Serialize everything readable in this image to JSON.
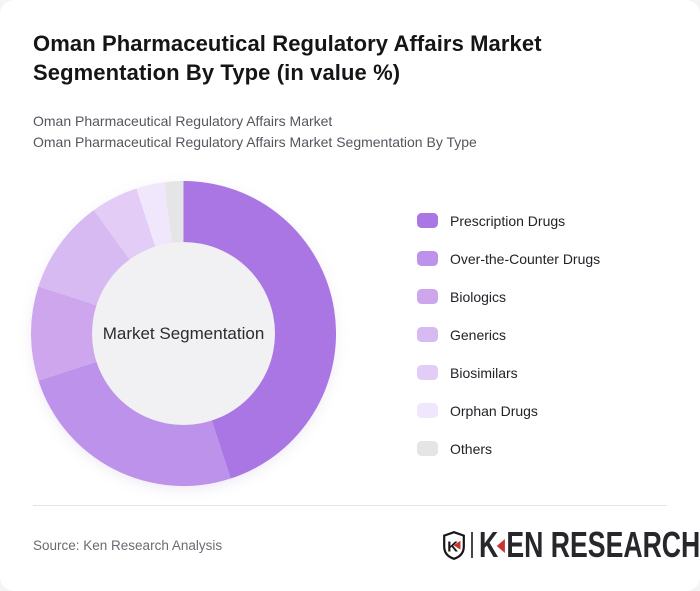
{
  "page": {
    "background_color": "#f4f4f6",
    "card_background": "#ffffff"
  },
  "header": {
    "title": "Oman Pharmaceutical Regulatory Affairs Market Segmentation By Type (in value %)",
    "subtitle_line1": "Oman Pharmaceutical Regulatory Affairs Market",
    "subtitle_line2": "Oman Pharmaceutical Regulatory Affairs Market Segmentation By Type"
  },
  "chart_data": {
    "type": "pie",
    "subtype": "donut",
    "center_label": "Market Segmentation",
    "categories": [
      "Prescription Drugs",
      "Over-the-Counter Drugs",
      "Biologics",
      "Generics",
      "Biosimilars",
      "Orphan Drugs",
      "Others"
    ],
    "values": [
      45,
      25,
      10,
      10,
      5,
      3,
      2
    ],
    "unit": "% of value (estimated from arc angles; no numeric labels shown)",
    "colors": [
      "#aa76e3",
      "#bd92ea",
      "#cda6ee",
      "#d8baf3",
      "#e3cdf7",
      "#f0e7fc",
      "#e5e4e7"
    ],
    "hole_color": "#f1f0f2",
    "start_angle_deg": 0,
    "direction": "clockwise",
    "inner_radius_ratio": 0.6,
    "legend_position": "right",
    "grid": false
  },
  "footer": {
    "source": "Source: Ken Research Analysis",
    "logo": {
      "emblem_letter": "K",
      "brand_part1": "K",
      "brand_part2": "EN RESEARCH",
      "accent_color": "#c9342e"
    }
  }
}
